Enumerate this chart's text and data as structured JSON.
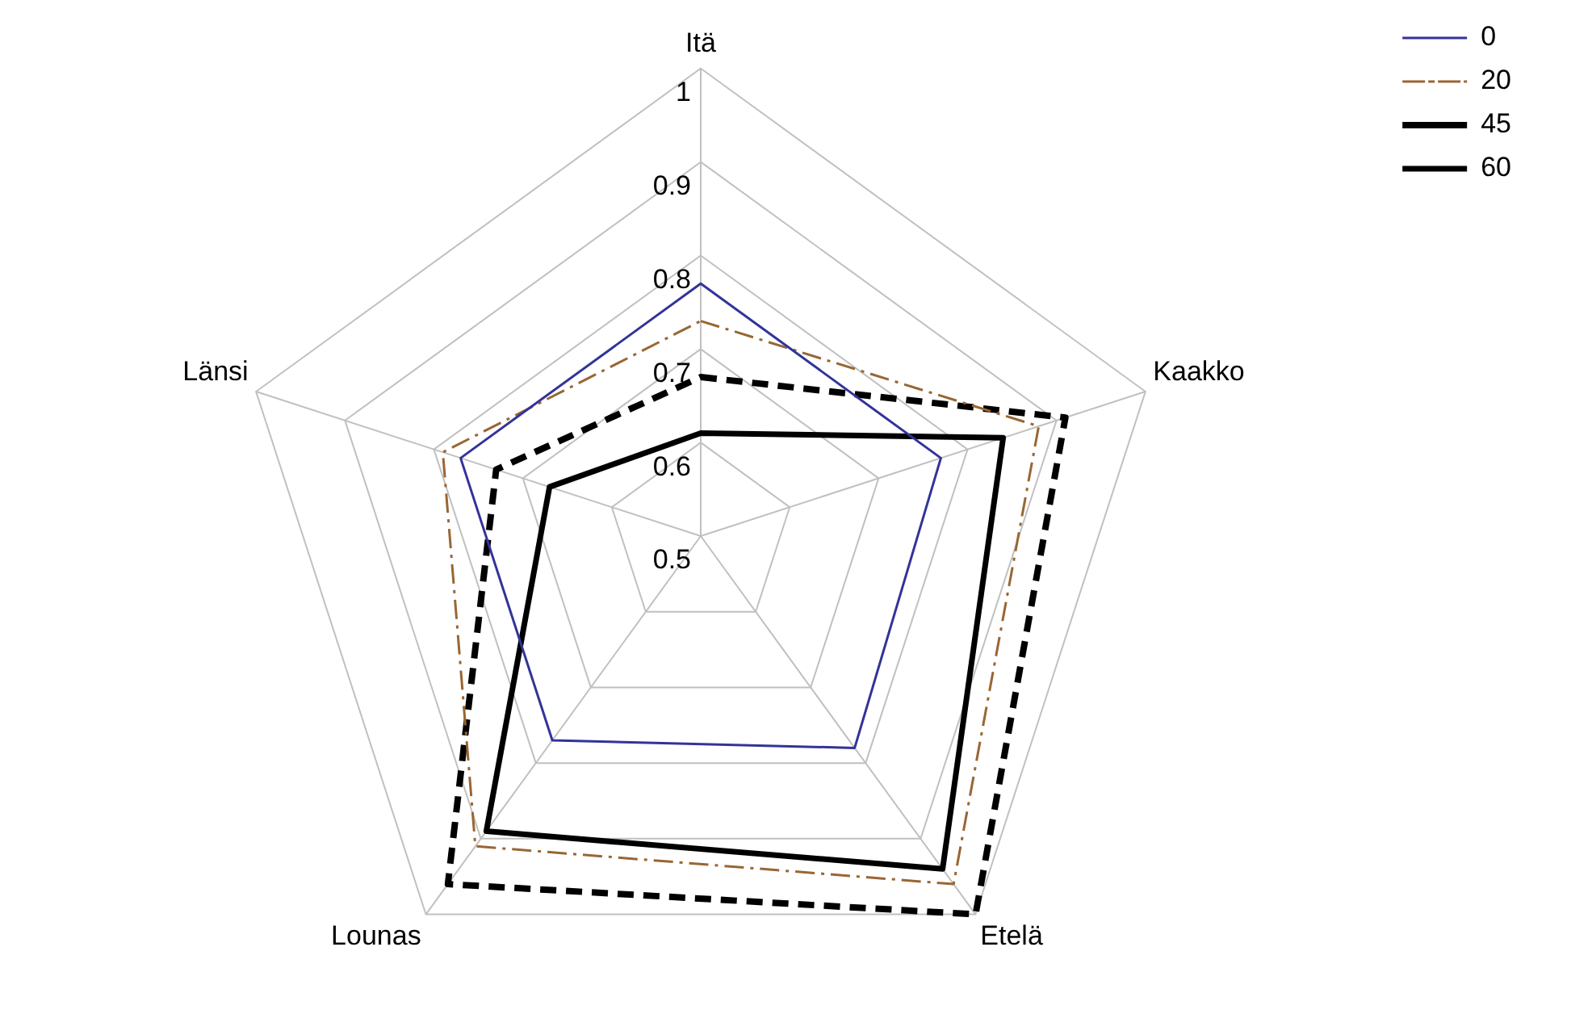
{
  "chart_data": {
    "type": "radar",
    "categories": [
      "Itä",
      "Kaakko",
      "Etelä",
      "Lounas",
      "Länsi"
    ],
    "series": [
      {
        "name": "0",
        "color": "#333399",
        "line_style": "solid",
        "values": [
          0.77,
          0.77,
          0.78,
          0.77,
          0.77
        ]
      },
      {
        "name": "20",
        "color": "#996633",
        "line_style": "dashdot",
        "values": [
          0.73,
          0.88,
          0.96,
          0.91,
          0.79
        ]
      },
      {
        "name": "45",
        "color": "#000000",
        "line_style": "dashed",
        "values": [
          0.67,
          0.91,
          1,
          0.96,
          0.73
        ]
      },
      {
        "name": "60",
        "color": "#000000",
        "line_style": "solid",
        "values": [
          0.61,
          0.84,
          0.94,
          0.89,
          0.67
        ]
      }
    ],
    "ylim": [
      0.5,
      1
    ],
    "yticks": [
      0.5,
      0.6,
      0.7,
      0.8,
      0.9,
      1
    ],
    "grid": true,
    "legend": "top right",
    "marker": "none"
  }
}
